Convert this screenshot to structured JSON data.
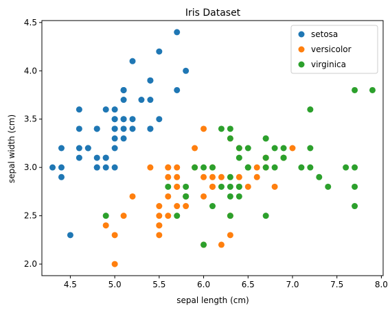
{
  "chart_data": {
    "type": "scatter",
    "title": "Iris Dataset",
    "xlabel": "sepal length (cm)",
    "ylabel": "sepal width (cm)",
    "xlim": [
      4.18,
      8.02
    ],
    "ylim": [
      1.88,
      4.52
    ],
    "xticks": [
      4.5,
      5.0,
      5.5,
      6.0,
      6.5,
      7.0,
      7.5,
      8.0
    ],
    "xtick_labels": [
      "4.5",
      "5.0",
      "5.5",
      "6.0",
      "6.5",
      "7.0",
      "7.5",
      "8.0"
    ],
    "yticks": [
      2.0,
      2.5,
      3.0,
      3.5,
      4.0,
      4.5
    ],
    "ytick_labels": [
      "2.0",
      "2.5",
      "3.0",
      "3.5",
      "4.0",
      "4.5"
    ],
    "grid": false,
    "legend_position": "top-right",
    "series": [
      {
        "name": "setosa",
        "color": "#1f77b4",
        "points": [
          [
            5.1,
            3.5
          ],
          [
            4.9,
            3.0
          ],
          [
            4.7,
            3.2
          ],
          [
            4.6,
            3.1
          ],
          [
            5.0,
            3.6
          ],
          [
            5.4,
            3.9
          ],
          [
            4.6,
            3.4
          ],
          [
            5.0,
            3.4
          ],
          [
            4.4,
            2.9
          ],
          [
            4.9,
            3.1
          ],
          [
            5.4,
            3.7
          ],
          [
            4.8,
            3.4
          ],
          [
            4.8,
            3.0
          ],
          [
            4.3,
            3.0
          ],
          [
            5.8,
            4.0
          ],
          [
            5.7,
            4.4
          ],
          [
            5.4,
            3.9
          ],
          [
            5.1,
            3.5
          ],
          [
            5.7,
            3.8
          ],
          [
            5.1,
            3.8
          ],
          [
            5.4,
            3.4
          ],
          [
            5.1,
            3.7
          ],
          [
            4.6,
            3.6
          ],
          [
            5.1,
            3.3
          ],
          [
            4.8,
            3.4
          ],
          [
            5.0,
            3.0
          ],
          [
            5.0,
            3.4
          ],
          [
            5.2,
            3.5
          ],
          [
            5.2,
            3.4
          ],
          [
            4.7,
            3.2
          ],
          [
            4.8,
            3.1
          ],
          [
            5.4,
            3.4
          ],
          [
            5.2,
            4.1
          ],
          [
            5.5,
            4.2
          ],
          [
            4.9,
            3.1
          ],
          [
            5.0,
            3.2
          ],
          [
            5.5,
            3.5
          ],
          [
            4.9,
            3.6
          ],
          [
            4.4,
            3.0
          ],
          [
            5.1,
            3.4
          ],
          [
            5.0,
            3.5
          ],
          [
            4.5,
            2.3
          ],
          [
            4.4,
            3.2
          ],
          [
            5.0,
            3.5
          ],
          [
            5.1,
            3.8
          ],
          [
            4.8,
            3.0
          ],
          [
            5.1,
            3.8
          ],
          [
            4.6,
            3.2
          ],
          [
            5.3,
            3.7
          ],
          [
            5.0,
            3.3
          ]
        ]
      },
      {
        "name": "versicolor",
        "color": "#ff7f0e",
        "points": [
          [
            7.0,
            3.2
          ],
          [
            6.4,
            3.2
          ],
          [
            6.9,
            3.1
          ],
          [
            5.5,
            2.3
          ],
          [
            6.5,
            2.8
          ],
          [
            5.7,
            2.8
          ],
          [
            6.3,
            3.3
          ],
          [
            4.9,
            2.4
          ],
          [
            6.6,
            2.9
          ],
          [
            5.2,
            2.7
          ],
          [
            5.0,
            2.0
          ],
          [
            5.9,
            3.0
          ],
          [
            6.0,
            2.2
          ],
          [
            6.1,
            2.9
          ],
          [
            5.6,
            2.9
          ],
          [
            6.7,
            3.1
          ],
          [
            5.6,
            3.0
          ],
          [
            5.8,
            2.7
          ],
          [
            6.2,
            2.2
          ],
          [
            5.6,
            2.5
          ],
          [
            5.9,
            3.2
          ],
          [
            6.1,
            2.8
          ],
          [
            6.3,
            2.5
          ],
          [
            6.1,
            2.8
          ],
          [
            6.4,
            2.9
          ],
          [
            6.6,
            3.0
          ],
          [
            6.8,
            2.8
          ],
          [
            6.7,
            3.0
          ],
          [
            6.0,
            2.9
          ],
          [
            5.7,
            2.6
          ],
          [
            5.5,
            2.4
          ],
          [
            5.5,
            2.4
          ],
          [
            5.8,
            2.7
          ],
          [
            6.0,
            2.7
          ],
          [
            5.4,
            3.0
          ],
          [
            6.0,
            3.4
          ],
          [
            6.7,
            3.1
          ],
          [
            6.3,
            2.3
          ],
          [
            5.6,
            3.0
          ],
          [
            5.5,
            2.5
          ],
          [
            5.5,
            2.6
          ],
          [
            6.1,
            3.0
          ],
          [
            5.8,
            2.6
          ],
          [
            5.0,
            2.3
          ],
          [
            5.6,
            2.7
          ],
          [
            5.7,
            3.0
          ],
          [
            5.7,
            2.9
          ],
          [
            6.2,
            2.9
          ],
          [
            5.1,
            2.5
          ],
          [
            5.7,
            2.8
          ]
        ]
      },
      {
        "name": "virginica",
        "color": "#2ca02c",
        "points": [
          [
            6.3,
            3.3
          ],
          [
            5.8,
            2.7
          ],
          [
            7.1,
            3.0
          ],
          [
            6.3,
            2.9
          ],
          [
            6.5,
            3.0
          ],
          [
            7.6,
            3.0
          ],
          [
            4.9,
            2.5
          ],
          [
            7.3,
            2.9
          ],
          [
            6.7,
            2.5
          ],
          [
            7.2,
            3.6
          ],
          [
            6.5,
            3.2
          ],
          [
            6.4,
            2.7
          ],
          [
            6.8,
            3.0
          ],
          [
            5.7,
            2.5
          ],
          [
            5.8,
            2.8
          ],
          [
            6.4,
            3.2
          ],
          [
            6.5,
            3.0
          ],
          [
            7.7,
            3.8
          ],
          [
            7.7,
            2.6
          ],
          [
            6.0,
            2.2
          ],
          [
            6.9,
            3.2
          ],
          [
            5.6,
            2.8
          ],
          [
            7.7,
            2.8
          ],
          [
            6.3,
            2.7
          ],
          [
            6.7,
            3.3
          ],
          [
            7.2,
            3.2
          ],
          [
            6.2,
            2.8
          ],
          [
            6.1,
            3.0
          ],
          [
            6.4,
            2.8
          ],
          [
            7.2,
            3.0
          ],
          [
            7.4,
            2.8
          ],
          [
            7.9,
            3.8
          ],
          [
            6.4,
            2.8
          ],
          [
            6.3,
            2.8
          ],
          [
            6.1,
            2.6
          ],
          [
            7.7,
            3.0
          ],
          [
            6.3,
            3.4
          ],
          [
            6.4,
            3.1
          ],
          [
            6.0,
            3.0
          ],
          [
            6.9,
            3.1
          ],
          [
            6.7,
            3.1
          ],
          [
            6.9,
            3.1
          ],
          [
            5.8,
            2.7
          ],
          [
            6.8,
            3.2
          ],
          [
            6.7,
            3.3
          ],
          [
            6.7,
            3.0
          ],
          [
            6.3,
            2.5
          ],
          [
            6.5,
            3.0
          ],
          [
            6.2,
            3.4
          ],
          [
            5.9,
            3.0
          ]
        ]
      }
    ]
  }
}
